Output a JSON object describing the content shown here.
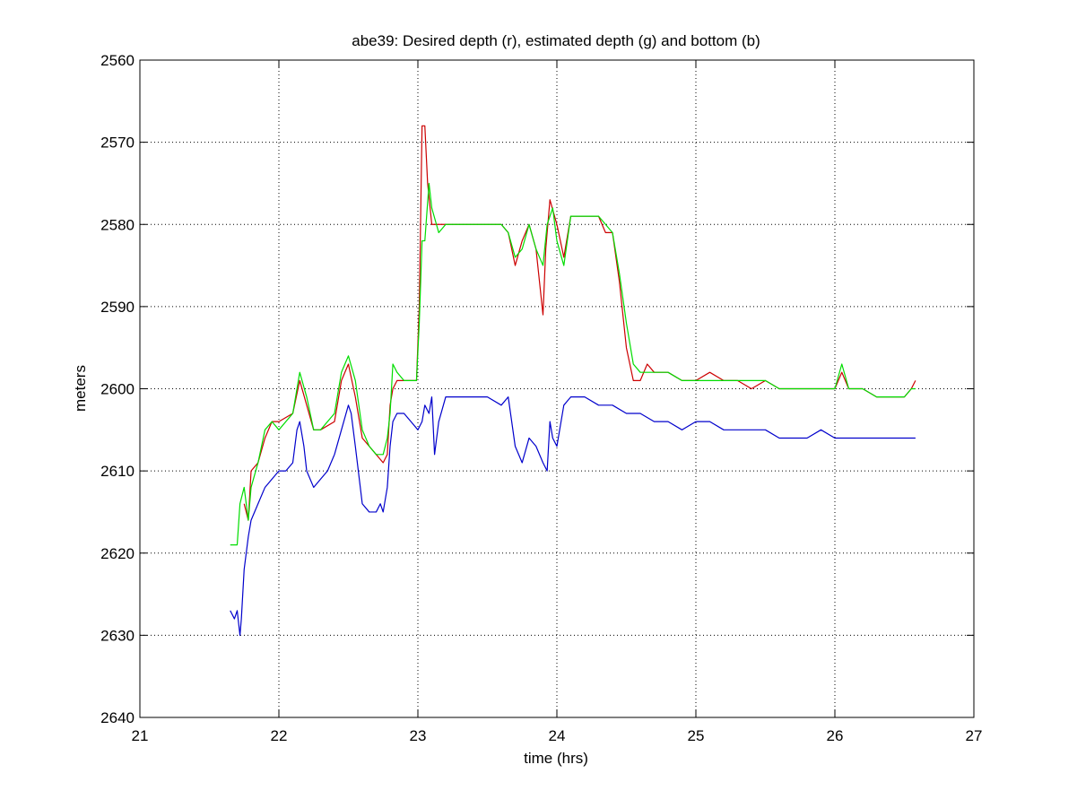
{
  "chart_data": {
    "type": "line",
    "title": "abe39: Desired depth (r), estimated depth (g) and bottom (b)",
    "xlabel": "time (hrs)",
    "ylabel": "meters",
    "xlim": [
      21,
      27
    ],
    "ylim": [
      2560,
      2640
    ],
    "y_reversed": true,
    "grid": true,
    "grid_style": "dotted",
    "x_ticks": [
      "21",
      "22",
      "23",
      "24",
      "25",
      "26",
      "27"
    ],
    "y_ticks": [
      "2560",
      "2570",
      "2580",
      "2590",
      "2600",
      "2610",
      "2620",
      "2630",
      "2640"
    ],
    "series": [
      {
        "color": "#cc0000",
        "x": [
          21.75,
          21.78,
          21.8,
          21.85,
          21.9,
          21.95,
          22.0,
          22.1,
          22.15,
          22.2,
          22.25,
          22.3,
          22.4,
          22.45,
          22.5,
          22.55,
          22.6,
          22.65,
          22.7,
          22.75,
          22.78,
          22.8,
          22.82,
          22.85,
          22.9,
          22.95,
          22.99,
          23.01,
          23.03,
          23.05,
          23.07,
          23.1,
          23.15,
          23.2,
          23.3,
          23.4,
          23.5,
          23.6,
          23.65,
          23.7,
          23.75,
          23.8,
          23.85,
          23.9,
          23.92,
          23.95,
          24.0,
          24.05,
          24.1,
          24.15,
          24.2,
          24.3,
          24.35,
          24.4,
          24.45,
          24.5,
          24.55,
          24.6,
          24.65,
          24.7,
          24.8,
          24.9,
          25.0,
          25.1,
          25.2,
          25.3,
          25.4,
          25.5,
          25.6,
          25.7,
          25.8,
          25.9,
          26.0,
          26.05,
          26.1,
          26.15,
          26.2,
          26.3,
          26.4,
          26.5,
          26.55,
          26.58
        ],
        "values": [
          2614,
          2616,
          2610,
          2609,
          2606,
          2604,
          2604,
          2603,
          2599,
          2602,
          2605,
          2605,
          2604,
          2599,
          2597,
          2601,
          2606,
          2607,
          2608,
          2609,
          2608,
          2602,
          2600,
          2599,
          2599,
          2599,
          2599,
          2590,
          2568,
          2568,
          2575,
          2580,
          2580,
          2580,
          2580,
          2580,
          2580,
          2580,
          2581,
          2585,
          2582,
          2580,
          2583,
          2591,
          2583,
          2577,
          2580,
          2584,
          2579,
          2579,
          2579,
          2579,
          2581,
          2581,
          2587,
          2595,
          2599,
          2599,
          2597,
          2598,
          2598,
          2599,
          2599,
          2598,
          2599,
          2599,
          2600,
          2599,
          2600,
          2600,
          2600,
          2600,
          2600,
          2598,
          2600,
          2600,
          2600,
          2601,
          2601,
          2601,
          2600,
          2599
        ]
      },
      {
        "color": "#00dd00",
        "x": [
          21.65,
          21.7,
          21.72,
          21.75,
          21.78,
          21.8,
          21.85,
          21.9,
          21.95,
          22.0,
          22.1,
          22.15,
          22.2,
          22.25,
          22.3,
          22.4,
          22.45,
          22.5,
          22.55,
          22.6,
          22.65,
          22.7,
          22.75,
          22.78,
          22.8,
          22.82,
          22.85,
          22.9,
          22.95,
          22.99,
          23.01,
          23.03,
          23.05,
          23.08,
          23.1,
          23.15,
          23.2,
          23.3,
          23.4,
          23.5,
          23.6,
          23.65,
          23.7,
          23.75,
          23.8,
          23.85,
          23.9,
          23.93,
          23.97,
          24.0,
          24.05,
          24.1,
          24.15,
          24.2,
          24.3,
          24.35,
          24.4,
          24.45,
          24.5,
          24.55,
          24.6,
          24.65,
          24.7,
          24.8,
          24.9,
          25.0,
          25.1,
          25.2,
          25.3,
          25.4,
          25.5,
          25.6,
          25.7,
          25.8,
          25.9,
          26.0,
          26.05,
          26.1,
          26.15,
          26.2,
          26.3,
          26.4,
          26.5,
          26.55,
          26.58
        ],
        "values": [
          2619,
          2619,
          2614,
          2612,
          2616,
          2612,
          2609,
          2605,
          2604,
          2605,
          2603,
          2598,
          2601,
          2605,
          2605,
          2603,
          2598,
          2596,
          2599,
          2605,
          2607,
          2608,
          2608,
          2606,
          2603,
          2597,
          2598,
          2599,
          2599,
          2599,
          2592,
          2582,
          2582,
          2575,
          2578,
          2581,
          2580,
          2580,
          2580,
          2580,
          2580,
          2581,
          2584,
          2583,
          2580,
          2583,
          2585,
          2580,
          2578,
          2582,
          2585,
          2579,
          2579,
          2579,
          2579,
          2580,
          2581,
          2586,
          2592,
          2597,
          2598,
          2598,
          2598,
          2598,
          2599,
          2599,
          2599,
          2599,
          2599,
          2599,
          2599,
          2600,
          2600,
          2600,
          2600,
          2600,
          2597,
          2600,
          2600,
          2600,
          2601,
          2601,
          2601,
          2600,
          2600
        ]
      },
      {
        "color": "#0000cc",
        "x": [
          21.65,
          21.68,
          21.7,
          21.72,
          21.73,
          21.75,
          21.78,
          21.8,
          21.85,
          21.9,
          21.95,
          22.0,
          22.05,
          22.1,
          22.13,
          22.15,
          22.18,
          22.2,
          22.25,
          22.3,
          22.35,
          22.4,
          22.45,
          22.5,
          22.52,
          22.55,
          22.6,
          22.65,
          22.7,
          22.73,
          22.75,
          22.78,
          22.8,
          22.82,
          22.85,
          22.9,
          22.95,
          23.0,
          23.03,
          23.05,
          23.08,
          23.1,
          23.12,
          23.15,
          23.2,
          23.3,
          23.4,
          23.5,
          23.6,
          23.65,
          23.7,
          23.75,
          23.8,
          23.85,
          23.9,
          23.93,
          23.95,
          23.97,
          24.0,
          24.05,
          24.1,
          24.2,
          24.3,
          24.4,
          24.5,
          24.6,
          24.7,
          24.8,
          24.9,
          25.0,
          25.1,
          25.2,
          25.3,
          25.4,
          25.5,
          25.6,
          25.7,
          25.8,
          25.9,
          26.0,
          26.1,
          26.2,
          26.3,
          26.4,
          26.5,
          26.55,
          26.58
        ],
        "values": [
          2627,
          2628,
          2627,
          2630,
          2628,
          2622,
          2618,
          2616,
          2614,
          2612,
          2611,
          2610,
          2610,
          2609,
          2605,
          2604,
          2607,
          2610,
          2612,
          2611,
          2610,
          2608,
          2605,
          2602,
          2603,
          2607,
          2614,
          2615,
          2615,
          2614,
          2615,
          2612,
          2607,
          2604,
          2603,
          2603,
          2604,
          2605,
          2604,
          2602,
          2603,
          2601,
          2608,
          2604,
          2601,
          2601,
          2601,
          2601,
          2602,
          2601,
          2607,
          2609,
          2606,
          2607,
          2609,
          2610,
          2604,
          2606,
          2607,
          2602,
          2601,
          2601,
          2602,
          2602,
          2603,
          2603,
          2604,
          2604,
          2605,
          2604,
          2604,
          2605,
          2605,
          2605,
          2605,
          2606,
          2606,
          2606,
          2605,
          2606,
          2606,
          2606,
          2606,
          2606,
          2606,
          2606,
          2606
        ]
      }
    ]
  }
}
